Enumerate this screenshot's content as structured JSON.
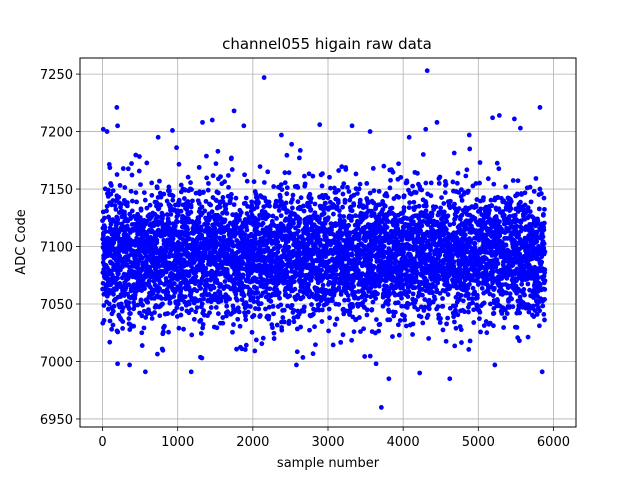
{
  "chart_data": {
    "type": "scatter",
    "title": "channel055 higain raw data",
    "xlabel": "sample number",
    "ylabel": "ADC Code",
    "xlim": [
      -300,
      6300
    ],
    "ylim": [
      6943,
      7264
    ],
    "xticks": [
      0,
      1000,
      2000,
      3000,
      4000,
      5000,
      6000
    ],
    "yticks": [
      6950,
      7000,
      7050,
      7100,
      7150,
      7200,
      7250
    ],
    "grid": true,
    "marker_color": "#0000ff",
    "sample_count": 5888,
    "central_band": [
      7035,
      7150
    ],
    "outliers": [
      {
        "x": 10,
        "y": 7202
      },
      {
        "x": 60,
        "y": 7200
      },
      {
        "x": 190,
        "y": 7221
      },
      {
        "x": 200,
        "y": 7205
      },
      {
        "x": 200,
        "y": 6998
      },
      {
        "x": 360,
        "y": 6997
      },
      {
        "x": 570,
        "y": 6991
      },
      {
        "x": 740,
        "y": 7195
      },
      {
        "x": 930,
        "y": 7201
      },
      {
        "x": 1180,
        "y": 6991
      },
      {
        "x": 1330,
        "y": 7208
      },
      {
        "x": 1460,
        "y": 7210
      },
      {
        "x": 1750,
        "y": 7218
      },
      {
        "x": 1880,
        "y": 7205
      },
      {
        "x": 2150,
        "y": 7247
      },
      {
        "x": 2380,
        "y": 7197
      },
      {
        "x": 2580,
        "y": 6997
      },
      {
        "x": 2890,
        "y": 7206
      },
      {
        "x": 3320,
        "y": 7205
      },
      {
        "x": 3560,
        "y": 7200
      },
      {
        "x": 3640,
        "y": 6998
      },
      {
        "x": 3710,
        "y": 6960
      },
      {
        "x": 3810,
        "y": 6985
      },
      {
        "x": 4080,
        "y": 7195
      },
      {
        "x": 4220,
        "y": 6990
      },
      {
        "x": 4300,
        "y": 7202
      },
      {
        "x": 4320,
        "y": 7253
      },
      {
        "x": 4450,
        "y": 7208
      },
      {
        "x": 4620,
        "y": 6985
      },
      {
        "x": 4880,
        "y": 7197
      },
      {
        "x": 5220,
        "y": 6997
      },
      {
        "x": 5190,
        "y": 7212
      },
      {
        "x": 5280,
        "y": 7214
      },
      {
        "x": 5480,
        "y": 7211
      },
      {
        "x": 5560,
        "y": 7203
      },
      {
        "x": 5820,
        "y": 7221
      },
      {
        "x": 5850,
        "y": 6991
      }
    ]
  }
}
